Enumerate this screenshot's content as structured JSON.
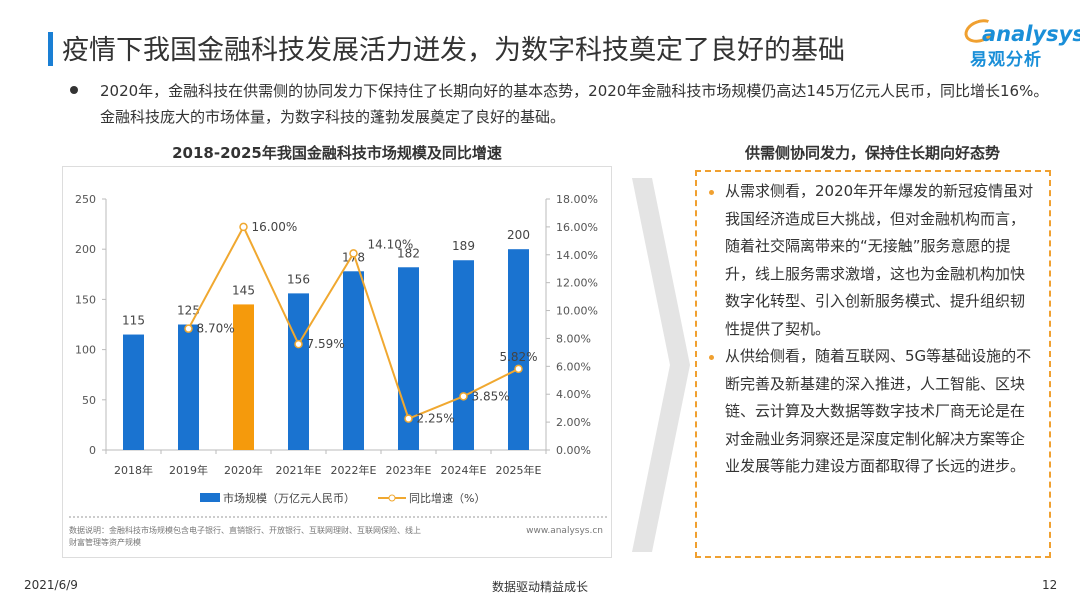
{
  "header": {
    "title": "疫情下我国金融科技发展活力迸发，为数字科技奠定了良好的基础",
    "logo_en": "analysys",
    "logo_cn": "易观分析"
  },
  "intro": "2020年，金融科技在供需侧的协同发力下保持住了长期向好的基本态势，2020年金融科技市场规模仍高达145万亿元人民币，同比增长16%。金融科技庞大的市场体量，为数字科技的蓬勃发展奠定了良好的基础。",
  "chart_data": {
    "type": "bar+line",
    "title": "2018-2025年我国金融科技市场规模及同比增速",
    "categories": [
      "2018年",
      "2019年",
      "2020年",
      "2021年E",
      "2022年E",
      "2023年E",
      "2024年E",
      "2025年E"
    ],
    "series": [
      {
        "name": "市场规模（万亿元人民币）",
        "type": "bar",
        "axis": "left",
        "values": [
          115,
          125,
          145,
          156,
          178,
          182,
          189,
          200
        ],
        "labels": [
          "115",
          "125",
          "145",
          "156",
          "178",
          "182",
          "189",
          "200"
        ],
        "color": "#1a73d0",
        "highlight_index": 2,
        "highlight_color": "#f59a0c"
      },
      {
        "name": "同比增速（%）",
        "type": "line",
        "axis": "right",
        "values": [
          null,
          8.7,
          16.0,
          7.59,
          14.1,
          2.25,
          3.85,
          5.82
        ],
        "labels": [
          "",
          "8.70%",
          "16.00%",
          "7.59%",
          "14.10%",
          "2.25%",
          "3.85%",
          "5.82%"
        ],
        "color": "#f0a830"
      }
    ],
    "y_left": {
      "ticks": [
        "0",
        "50",
        "100",
        "150",
        "200",
        "250"
      ],
      "range": [
        0,
        250
      ]
    },
    "y_right": {
      "ticks": [
        "0.00%",
        "2.00%",
        "4.00%",
        "6.00%",
        "8.00%",
        "10.00%",
        "12.00%",
        "14.00%",
        "16.00%",
        "18.00%"
      ],
      "range": [
        0,
        18
      ]
    },
    "grid": false,
    "legend": "bottom",
    "note": "数据说明：金融科技市场规模包含电子银行、直销银行、开放银行、互联网理财、互联网保险、线上财富管理等资产规模",
    "source": "www.analysys.cn"
  },
  "side": {
    "title": "供需侧协同发力，保持住长期向好态势",
    "items": [
      "从需求侧看，2020年开年爆发的新冠疫情虽对我国经济造成巨大挑战，但对金融机构而言，随着社交隔离带来的“无接触”服务意愿的提升，线上服务需求激增，这也为金融机构加快数字化转型、引入创新服务模式、提升组织韧性提供了契机。",
      "从供给侧看，随着互联网、5G等基础设施的不断完善及新基建的深入推进，人工智能、区块链、云计算及大数据等数字技术厂商无论是在对金融业务洞察还是深度定制化解决方案等企业发展等能力建设方面都取得了长远的进步。"
    ]
  },
  "footer": {
    "date": "2021/6/9",
    "center": "数据驱动精益成长",
    "page": "12"
  }
}
